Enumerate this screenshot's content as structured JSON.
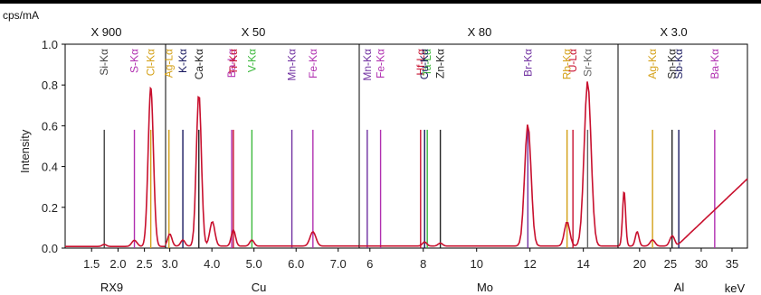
{
  "chart_data": {
    "type": "line",
    "y_unit": "cps/mA",
    "ylabel": "Intensity",
    "x_unit": "keV",
    "ylim": [
      0,
      1.0
    ],
    "y_ticks": [
      "0.0",
      "0.2",
      "0.4",
      "0.6",
      "0.8",
      "1.0"
    ],
    "line_color": "#c8102e",
    "panels": [
      {
        "target": "RX9",
        "multiplier": "X 900",
        "xlim": [
          1.0,
          2.9
        ],
        "ticks": [
          [
            "1.5",
            1.5
          ],
          [
            "2.0",
            2.0
          ],
          [
            "2.5",
            2.5
          ]
        ],
        "markers": [
          {
            "label": "Si-Kα",
            "energy": 1.74,
            "color": "#444444"
          },
          {
            "label": "S-Kα",
            "energy": 2.31,
            "color": "#b02fb0"
          },
          {
            "label": "Cl-Kα",
            "energy": 2.62,
            "color": "#d4a017"
          }
        ],
        "peaks": [
          [
            2.31,
            0.03,
            0.05
          ],
          [
            2.62,
            0.78,
            0.05
          ],
          [
            1.74,
            0.01,
            0.04
          ]
        ],
        "baseline": 0.008
      },
      {
        "target": "Cu",
        "multiplier": "X 50",
        "xlim": [
          2.9,
          7.5
        ],
        "ticks": [
          [
            "2.5",
            2.5
          ],
          [
            "3.0",
            3.0
          ],
          [
            "4.0",
            4.0
          ],
          [
            "5.0",
            5.0
          ],
          [
            "6.0",
            6.0
          ],
          [
            "7.0",
            7.0
          ]
        ],
        "markers": [
          {
            "label": "Ag-Lα",
            "energy": 2.98,
            "color": "#d4a017"
          },
          {
            "label": "K-Kα",
            "energy": 3.31,
            "color": "#1a1a60"
          },
          {
            "label": "Ca-Kα",
            "energy": 3.69,
            "color": "#222222"
          },
          {
            "label": "Ba-Lα",
            "energy": 4.47,
            "color": "#b02fb0"
          },
          {
            "label": "Ti-Kα",
            "energy": 4.51,
            "color": "#c8102e"
          },
          {
            "label": "V-Kα",
            "energy": 4.95,
            "color": "#3cb83c"
          },
          {
            "label": "Mn-Kα",
            "energy": 5.9,
            "color": "#7030a0"
          },
          {
            "label": "Fe-Kα",
            "energy": 6.4,
            "color": "#b02fb0"
          }
        ],
        "peaks": [
          [
            3.0,
            0.06,
            0.05
          ],
          [
            3.31,
            0.03,
            0.05
          ],
          [
            3.69,
            0.75,
            0.06
          ],
          [
            4.01,
            0.12,
            0.06
          ],
          [
            4.51,
            0.08,
            0.05
          ],
          [
            4.95,
            0.03,
            0.05
          ],
          [
            6.4,
            0.07,
            0.07
          ]
        ],
        "baseline": 0.01
      },
      {
        "target": "Mo",
        "multiplier": "X 80",
        "xlim": [
          5.6,
          15.3
        ],
        "ticks": [
          [
            "6",
            6
          ],
          [
            "8",
            8
          ],
          [
            "10",
            10
          ],
          [
            "12",
            12
          ],
          [
            "14",
            14
          ]
        ],
        "markers": [
          {
            "label": "Mn-Kα",
            "energy": 5.9,
            "color": "#7030a0"
          },
          {
            "label": "Fe-Kα",
            "energy": 6.4,
            "color": "#b02fb0"
          },
          {
            "label": "Hf-Lα",
            "energy": 7.9,
            "color": "#c8102e"
          },
          {
            "label": "Ta-Lα",
            "energy": 8.15,
            "color": "#3cb83c"
          },
          {
            "label": "Cu-Kα",
            "energy": 8.05,
            "color": "#1a1a60"
          },
          {
            "label": "Zn-Kα",
            "energy": 8.64,
            "color": "#222222"
          },
          {
            "label": "Br-Kα",
            "energy": 11.92,
            "color": "#7030a0"
          },
          {
            "label": "Rb-Kα",
            "energy": 13.39,
            "color": "#d4a017"
          },
          {
            "label": "U-Lα",
            "energy": 13.61,
            "color": "#c8102e"
          },
          {
            "label": "Sr-Kα",
            "energy": 14.16,
            "color": "#666666"
          }
        ],
        "peaks": [
          [
            8.05,
            0.02,
            0.08
          ],
          [
            8.64,
            0.015,
            0.08
          ],
          [
            11.92,
            0.6,
            0.12
          ],
          [
            13.39,
            0.12,
            0.1
          ],
          [
            14.16,
            0.81,
            0.13
          ]
        ],
        "baseline": 0.01
      },
      {
        "target": "Al",
        "multiplier": "X 3.0",
        "xlim": [
          16.5,
          37.5
        ],
        "ticks": [
          [
            "20",
            20
          ],
          [
            "25",
            25
          ],
          [
            "30",
            30
          ],
          [
            "35",
            35
          ]
        ],
        "markers": [
          {
            "label": "Ag-Kα",
            "energy": 22.1,
            "color": "#d4a017"
          },
          {
            "label": "Sb-Kα",
            "energy": 26.36,
            "color": "#1a1a60"
          },
          {
            "label": "Sn-Kα",
            "energy": 25.27,
            "color": "#222222"
          },
          {
            "label": "Ba-Kα",
            "energy": 32.19,
            "color": "#b02fb0"
          }
        ],
        "peaks": [
          [
            17.48,
            0.27,
            0.25
          ],
          [
            19.6,
            0.07,
            0.3
          ],
          [
            22.1,
            0.03,
            0.4
          ],
          [
            25.3,
            0.05,
            0.4
          ]
        ],
        "baseline": 0.01
      }
    ]
  }
}
